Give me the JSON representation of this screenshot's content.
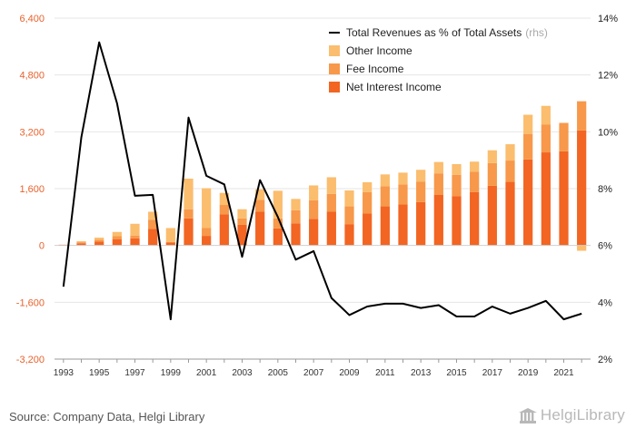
{
  "chart_data": {
    "type": "bar",
    "stacked": true,
    "title": "",
    "categories": [
      "1993",
      "1994",
      "1995",
      "1996",
      "1997",
      "1998",
      "1999",
      "2000",
      "2001",
      "2002",
      "2003",
      "2004",
      "2005",
      "2006",
      "2007",
      "2008",
      "2009",
      "2010",
      "2011",
      "2012",
      "2013",
      "2014",
      "2015",
      "2016",
      "2017",
      "2018",
      "2019",
      "2020",
      "2021",
      "2022"
    ],
    "x_tick_labels": [
      "1993",
      "1995",
      "1997",
      "1999",
      "2001",
      "2003",
      "2005",
      "2007",
      "2009",
      "2011",
      "2013",
      "2015",
      "2017",
      "2019",
      "2021"
    ],
    "series": [
      {
        "name": "Net Interest Income",
        "color": "#f26522",
        "values": [
          20,
          60,
          110,
          170,
          200,
          470,
          80,
          760,
          270,
          880,
          580,
          950,
          480,
          620,
          750,
          950,
          600,
          900,
          1100,
          1160,
          1220,
          1430,
          1390,
          1500,
          1680,
          1790,
          2420,
          2620,
          2650,
          3240
        ]
      },
      {
        "name": "Fee Income",
        "color": "#f7984a",
        "values": [
          0,
          30,
          50,
          90,
          80,
          250,
          20,
          260,
          220,
          260,
          180,
          330,
          280,
          370,
          520,
          500,
          500,
          600,
          570,
          560,
          580,
          600,
          600,
          580,
          640,
          600,
          720,
          780,
          800,
          820
        ]
      },
      {
        "name": "Other Income",
        "color": "#fbbd6e",
        "values": [
          0,
          30,
          60,
          120,
          330,
          230,
          390,
          860,
          1120,
          340,
          260,
          300,
          780,
          320,
          420,
          470,
          450,
          280,
          330,
          330,
          330,
          320,
          300,
          280,
          360,
          460,
          540,
          530,
          0,
          -150
        ]
      }
    ],
    "line_series": {
      "name": "Total Revenues as % of Total Assets",
      "name_note": "(rhs)",
      "color": "#000000",
      "axis": "right",
      "values": [
        4.55,
        9.8,
        13.15,
        11.0,
        7.75,
        7.78,
        3.4,
        10.5,
        8.45,
        8.15,
        5.6,
        8.3,
        7.0,
        5.5,
        5.8,
        4.15,
        3.55,
        3.85,
        3.95,
        3.95,
        3.8,
        3.9,
        3.5,
        3.5,
        3.85,
        3.6,
        3.8,
        4.05,
        3.4,
        3.6
      ]
    },
    "y_left": {
      "min": -3200,
      "max": 6400,
      "ticks": [
        "-3,200",
        "-1,600",
        "0",
        "1,600",
        "3,200",
        "4,800",
        "6,400"
      ],
      "tick_values": [
        -3200,
        -1600,
        0,
        1600,
        3200,
        4800,
        6400
      ]
    },
    "y_right": {
      "min": 2,
      "max": 14,
      "ticks": [
        "2%",
        "4%",
        "6%",
        "8%",
        "10%",
        "12%",
        "14%"
      ],
      "tick_values": [
        2,
        4,
        6,
        8,
        10,
        12,
        14
      ]
    },
    "legend": {
      "placement": "top-right",
      "entries": [
        {
          "label": "Total Revenues as % of Total Assets",
          "note": "(rhs)",
          "kind": "line",
          "color": "#000000"
        },
        {
          "label": "Other Income",
          "kind": "box",
          "color": "#fbbd6e"
        },
        {
          "label": "Fee Income",
          "kind": "box",
          "color": "#f7984a"
        },
        {
          "label": "Net Interest Income",
          "kind": "box",
          "color": "#f26522"
        }
      ]
    },
    "grid": "horizontal"
  },
  "footer": {
    "source": "Source: Company Data, Helgi Library",
    "brand": "HelgiLibrary"
  }
}
